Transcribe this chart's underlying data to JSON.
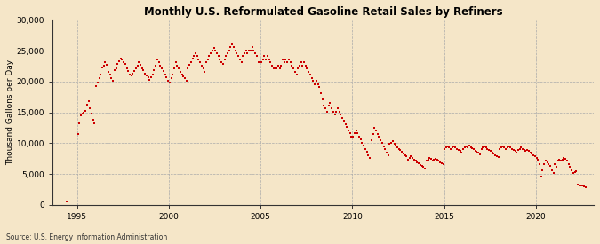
{
  "title": "Monthly U.S. Reformulated Gasoline Retail Sales by Refiners",
  "ylabel": "Thousand Gallons per Day",
  "source": "Source: U.S. Energy Information Administration",
  "background_color": "#f5e6c8",
  "plot_bg_color": "#f5e6c8",
  "marker_color": "#cc0000",
  "ylim": [
    0,
    30000
  ],
  "yticks": [
    0,
    5000,
    10000,
    15000,
    20000,
    25000,
    30000
  ],
  "ytick_labels": [
    "0",
    "5,000",
    "10,000",
    "15,000",
    "20,000",
    "25,000",
    "30,000"
  ],
  "xtick_years": [
    1995,
    2000,
    2005,
    2010,
    2015,
    2020
  ],
  "data": [
    [
      1994,
      6,
      500
    ],
    [
      1995,
      1,
      11500
    ],
    [
      1995,
      2,
      13200
    ],
    [
      1995,
      3,
      14500
    ],
    [
      1995,
      4,
      14800
    ],
    [
      1995,
      5,
      15000
    ],
    [
      1995,
      6,
      15200
    ],
    [
      1995,
      7,
      16200
    ],
    [
      1995,
      8,
      16800
    ],
    [
      1995,
      9,
      15600
    ],
    [
      1995,
      10,
      14800
    ],
    [
      1995,
      11,
      13800
    ],
    [
      1995,
      12,
      13200
    ],
    [
      1996,
      1,
      19200
    ],
    [
      1996,
      2,
      19800
    ],
    [
      1996,
      3,
      20500
    ],
    [
      1996,
      4,
      21200
    ],
    [
      1996,
      5,
      22300
    ],
    [
      1996,
      6,
      22600
    ],
    [
      1996,
      7,
      23100
    ],
    [
      1996,
      8,
      22700
    ],
    [
      1996,
      9,
      21600
    ],
    [
      1996,
      10,
      21100
    ],
    [
      1996,
      11,
      20600
    ],
    [
      1996,
      12,
      20100
    ],
    [
      1997,
      1,
      21800
    ],
    [
      1997,
      2,
      22200
    ],
    [
      1997,
      3,
      22800
    ],
    [
      1997,
      4,
      23300
    ],
    [
      1997,
      5,
      23800
    ],
    [
      1997,
      6,
      23600
    ],
    [
      1997,
      7,
      23200
    ],
    [
      1997,
      8,
      22800
    ],
    [
      1997,
      9,
      22200
    ],
    [
      1997,
      10,
      21700
    ],
    [
      1997,
      11,
      21200
    ],
    [
      1997,
      12,
      21000
    ],
    [
      1998,
      1,
      21300
    ],
    [
      1998,
      2,
      21700
    ],
    [
      1998,
      3,
      22100
    ],
    [
      1998,
      4,
      22600
    ],
    [
      1998,
      5,
      23100
    ],
    [
      1998,
      6,
      22700
    ],
    [
      1998,
      7,
      22200
    ],
    [
      1998,
      8,
      21800
    ],
    [
      1998,
      9,
      21300
    ],
    [
      1998,
      10,
      21000
    ],
    [
      1998,
      11,
      20700
    ],
    [
      1998,
      12,
      20300
    ],
    [
      1999,
      1,
      20700
    ],
    [
      1999,
      2,
      21200
    ],
    [
      1999,
      3,
      21800
    ],
    [
      1999,
      4,
      22600
    ],
    [
      1999,
      5,
      23600
    ],
    [
      1999,
      6,
      23100
    ],
    [
      1999,
      7,
      22600
    ],
    [
      1999,
      8,
      22200
    ],
    [
      1999,
      9,
      21700
    ],
    [
      1999,
      10,
      21200
    ],
    [
      1999,
      11,
      20700
    ],
    [
      1999,
      12,
      20200
    ],
    [
      2000,
      1,
      19800
    ],
    [
      2000,
      2,
      20600
    ],
    [
      2000,
      3,
      21100
    ],
    [
      2000,
      4,
      22100
    ],
    [
      2000,
      5,
      23100
    ],
    [
      2000,
      6,
      22600
    ],
    [
      2000,
      7,
      22100
    ],
    [
      2000,
      8,
      21600
    ],
    [
      2000,
      9,
      21100
    ],
    [
      2000,
      10,
      20800
    ],
    [
      2000,
      11,
      20500
    ],
    [
      2000,
      12,
      20100
    ],
    [
      2001,
      1,
      22200
    ],
    [
      2001,
      2,
      22700
    ],
    [
      2001,
      3,
      23200
    ],
    [
      2001,
      4,
      23700
    ],
    [
      2001,
      5,
      24200
    ],
    [
      2001,
      6,
      24600
    ],
    [
      2001,
      7,
      24100
    ],
    [
      2001,
      8,
      23600
    ],
    [
      2001,
      9,
      23100
    ],
    [
      2001,
      10,
      22600
    ],
    [
      2001,
      11,
      22100
    ],
    [
      2001,
      12,
      21600
    ],
    [
      2002,
      1,
      23100
    ],
    [
      2002,
      2,
      23600
    ],
    [
      2002,
      3,
      24100
    ],
    [
      2002,
      4,
      24600
    ],
    [
      2002,
      5,
      25100
    ],
    [
      2002,
      6,
      25500
    ],
    [
      2002,
      7,
      25100
    ],
    [
      2002,
      8,
      24600
    ],
    [
      2002,
      9,
      24100
    ],
    [
      2002,
      10,
      23600
    ],
    [
      2002,
      11,
      23100
    ],
    [
      2002,
      12,
      22900
    ],
    [
      2003,
      1,
      23600
    ],
    [
      2003,
      2,
      24100
    ],
    [
      2003,
      3,
      24600
    ],
    [
      2003,
      4,
      25100
    ],
    [
      2003,
      5,
      25600
    ],
    [
      2003,
      6,
      26000
    ],
    [
      2003,
      7,
      25600
    ],
    [
      2003,
      8,
      25100
    ],
    [
      2003,
      9,
      24600
    ],
    [
      2003,
      10,
      24100
    ],
    [
      2003,
      11,
      23600
    ],
    [
      2003,
      12,
      23100
    ],
    [
      2004,
      1,
      24100
    ],
    [
      2004,
      2,
      24600
    ],
    [
      2004,
      3,
      25100
    ],
    [
      2004,
      4,
      24600
    ],
    [
      2004,
      5,
      25100
    ],
    [
      2004,
      6,
      25100
    ],
    [
      2004,
      7,
      25600
    ],
    [
      2004,
      8,
      25100
    ],
    [
      2004,
      9,
      24600
    ],
    [
      2004,
      10,
      24100
    ],
    [
      2004,
      11,
      23100
    ],
    [
      2004,
      12,
      23100
    ],
    [
      2005,
      1,
      23100
    ],
    [
      2005,
      2,
      23600
    ],
    [
      2005,
      3,
      24100
    ],
    [
      2005,
      4,
      23600
    ],
    [
      2005,
      5,
      24100
    ],
    [
      2005,
      6,
      23600
    ],
    [
      2005,
      7,
      23100
    ],
    [
      2005,
      8,
      22600
    ],
    [
      2005,
      9,
      22100
    ],
    [
      2005,
      10,
      22100
    ],
    [
      2005,
      11,
      22100
    ],
    [
      2005,
      12,
      22600
    ],
    [
      2006,
      1,
      22100
    ],
    [
      2006,
      2,
      22600
    ],
    [
      2006,
      3,
      23600
    ],
    [
      2006,
      4,
      23100
    ],
    [
      2006,
      5,
      23600
    ],
    [
      2006,
      6,
      23100
    ],
    [
      2006,
      7,
      23600
    ],
    [
      2006,
      8,
      23100
    ],
    [
      2006,
      9,
      22600
    ],
    [
      2006,
      10,
      22100
    ],
    [
      2006,
      11,
      21600
    ],
    [
      2006,
      12,
      21100
    ],
    [
      2007,
      1,
      22100
    ],
    [
      2007,
      2,
      22600
    ],
    [
      2007,
      3,
      23100
    ],
    [
      2007,
      4,
      22600
    ],
    [
      2007,
      5,
      23100
    ],
    [
      2007,
      6,
      22600
    ],
    [
      2007,
      7,
      22100
    ],
    [
      2007,
      8,
      21600
    ],
    [
      2007,
      9,
      21100
    ],
    [
      2007,
      10,
      20600
    ],
    [
      2007,
      11,
      20100
    ],
    [
      2007,
      12,
      19600
    ],
    [
      2008,
      1,
      20100
    ],
    [
      2008,
      2,
      19600
    ],
    [
      2008,
      3,
      19100
    ],
    [
      2008,
      4,
      18100
    ],
    [
      2008,
      5,
      17100
    ],
    [
      2008,
      6,
      16100
    ],
    [
      2008,
      7,
      15600
    ],
    [
      2008,
      8,
      15100
    ],
    [
      2008,
      9,
      16100
    ],
    [
      2008,
      10,
      16600
    ],
    [
      2008,
      11,
      15600
    ],
    [
      2008,
      12,
      15100
    ],
    [
      2009,
      1,
      14600
    ],
    [
      2009,
      2,
      15100
    ],
    [
      2009,
      3,
      15600
    ],
    [
      2009,
      4,
      15100
    ],
    [
      2009,
      5,
      14600
    ],
    [
      2009,
      6,
      14100
    ],
    [
      2009,
      7,
      13600
    ],
    [
      2009,
      8,
      13100
    ],
    [
      2009,
      9,
      12600
    ],
    [
      2009,
      10,
      12100
    ],
    [
      2009,
      11,
      11600
    ],
    [
      2009,
      12,
      11100
    ],
    [
      2010,
      1,
      11100
    ],
    [
      2010,
      2,
      11600
    ],
    [
      2010,
      3,
      12100
    ],
    [
      2010,
      4,
      11600
    ],
    [
      2010,
      5,
      11100
    ],
    [
      2010,
      6,
      10600
    ],
    [
      2010,
      7,
      10100
    ],
    [
      2010,
      8,
      9600
    ],
    [
      2010,
      9,
      9100
    ],
    [
      2010,
      10,
      8600
    ],
    [
      2010,
      11,
      8100
    ],
    [
      2010,
      12,
      7600
    ],
    [
      2011,
      1,
      10500
    ],
    [
      2011,
      2,
      11500
    ],
    [
      2011,
      3,
      12500
    ],
    [
      2011,
      4,
      12000
    ],
    [
      2011,
      5,
      11500
    ],
    [
      2011,
      6,
      11000
    ],
    [
      2011,
      7,
      10500
    ],
    [
      2011,
      8,
      10000
    ],
    [
      2011,
      9,
      9500
    ],
    [
      2011,
      10,
      9000
    ],
    [
      2011,
      11,
      8500
    ],
    [
      2011,
      12,
      8000
    ],
    [
      2012,
      1,
      9900
    ],
    [
      2012,
      2,
      10100
    ],
    [
      2012,
      3,
      10300
    ],
    [
      2012,
      4,
      9900
    ],
    [
      2012,
      5,
      9600
    ],
    [
      2012,
      6,
      9300
    ],
    [
      2012,
      7,
      9100
    ],
    [
      2012,
      8,
      8900
    ],
    [
      2012,
      9,
      8600
    ],
    [
      2012,
      10,
      8300
    ],
    [
      2012,
      11,
      8100
    ],
    [
      2012,
      12,
      7900
    ],
    [
      2013,
      1,
      7300
    ],
    [
      2013,
      2,
      7600
    ],
    [
      2013,
      3,
      7900
    ],
    [
      2013,
      4,
      7600
    ],
    [
      2013,
      5,
      7300
    ],
    [
      2013,
      6,
      7100
    ],
    [
      2013,
      7,
      6900
    ],
    [
      2013,
      8,
      6700
    ],
    [
      2013,
      9,
      6500
    ],
    [
      2013,
      10,
      6300
    ],
    [
      2013,
      11,
      6100
    ],
    [
      2013,
      12,
      5900
    ],
    [
      2014,
      1,
      7100
    ],
    [
      2014,
      2,
      7300
    ],
    [
      2014,
      3,
      7600
    ],
    [
      2014,
      4,
      7400
    ],
    [
      2014,
      5,
      7100
    ],
    [
      2014,
      6,
      7300
    ],
    [
      2014,
      7,
      7500
    ],
    [
      2014,
      8,
      7300
    ],
    [
      2014,
      9,
      7100
    ],
    [
      2014,
      10,
      6900
    ],
    [
      2014,
      11,
      6700
    ],
    [
      2014,
      12,
      6600
    ],
    [
      2015,
      1,
      9100
    ],
    [
      2015,
      2,
      9300
    ],
    [
      2015,
      3,
      9500
    ],
    [
      2015,
      4,
      9300
    ],
    [
      2015,
      5,
      9100
    ],
    [
      2015,
      6,
      9300
    ],
    [
      2015,
      7,
      9500
    ],
    [
      2015,
      8,
      9300
    ],
    [
      2015,
      9,
      9100
    ],
    [
      2015,
      10,
      8900
    ],
    [
      2015,
      11,
      8700
    ],
    [
      2015,
      12,
      8500
    ],
    [
      2016,
      1,
      9100
    ],
    [
      2016,
      2,
      9300
    ],
    [
      2016,
      3,
      9500
    ],
    [
      2016,
      4,
      9300
    ],
    [
      2016,
      5,
      9600
    ],
    [
      2016,
      6,
      9400
    ],
    [
      2016,
      7,
      9200
    ],
    [
      2016,
      8,
      9000
    ],
    [
      2016,
      9,
      8800
    ],
    [
      2016,
      10,
      8600
    ],
    [
      2016,
      11,
      8400
    ],
    [
      2016,
      12,
      8200
    ],
    [
      2017,
      1,
      9100
    ],
    [
      2017,
      2,
      9300
    ],
    [
      2017,
      3,
      9500
    ],
    [
      2017,
      4,
      9300
    ],
    [
      2017,
      5,
      9100
    ],
    [
      2017,
      6,
      8900
    ],
    [
      2017,
      7,
      8700
    ],
    [
      2017,
      8,
      8500
    ],
    [
      2017,
      9,
      8300
    ],
    [
      2017,
      10,
      8100
    ],
    [
      2017,
      11,
      7900
    ],
    [
      2017,
      12,
      7700
    ],
    [
      2018,
      1,
      9100
    ],
    [
      2018,
      2,
      9300
    ],
    [
      2018,
      3,
      9500
    ],
    [
      2018,
      4,
      9300
    ],
    [
      2018,
      5,
      9100
    ],
    [
      2018,
      6,
      9300
    ],
    [
      2018,
      7,
      9500
    ],
    [
      2018,
      8,
      9300
    ],
    [
      2018,
      9,
      9100
    ],
    [
      2018,
      10,
      8900
    ],
    [
      2018,
      11,
      8700
    ],
    [
      2018,
      12,
      8500
    ],
    [
      2019,
      1,
      8900
    ],
    [
      2019,
      2,
      9100
    ],
    [
      2019,
      3,
      9300
    ],
    [
      2019,
      4,
      9100
    ],
    [
      2019,
      5,
      8900
    ],
    [
      2019,
      6,
      8700
    ],
    [
      2019,
      7,
      8900
    ],
    [
      2019,
      8,
      8700
    ],
    [
      2019,
      9,
      8500
    ],
    [
      2019,
      10,
      8300
    ],
    [
      2019,
      11,
      8100
    ],
    [
      2019,
      12,
      7900
    ],
    [
      2020,
      1,
      7600
    ],
    [
      2020,
      2,
      7300
    ],
    [
      2020,
      3,
      6600
    ],
    [
      2020,
      4,
      4600
    ],
    [
      2020,
      5,
      5600
    ],
    [
      2020,
      6,
      6600
    ],
    [
      2020,
      7,
      7100
    ],
    [
      2020,
      8,
      6900
    ],
    [
      2020,
      9,
      6600
    ],
    [
      2020,
      10,
      6300
    ],
    [
      2020,
      11,
      5600
    ],
    [
      2020,
      12,
      5100
    ],
    [
      2021,
      1,
      6600
    ],
    [
      2021,
      2,
      6100
    ],
    [
      2021,
      3,
      7100
    ],
    [
      2021,
      4,
      7300
    ],
    [
      2021,
      5,
      7100
    ],
    [
      2021,
      6,
      7300
    ],
    [
      2021,
      7,
      7600
    ],
    [
      2021,
      8,
      7400
    ],
    [
      2021,
      9,
      7100
    ],
    [
      2021,
      10,
      6600
    ],
    [
      2021,
      11,
      6100
    ],
    [
      2021,
      12,
      5600
    ],
    [
      2022,
      1,
      5100
    ],
    [
      2022,
      2,
      5300
    ],
    [
      2022,
      3,
      5500
    ],
    [
      2022,
      4,
      3300
    ],
    [
      2022,
      5,
      3100
    ],
    [
      2022,
      6,
      3200
    ],
    [
      2022,
      7,
      3100
    ],
    [
      2022,
      8,
      3000
    ],
    [
      2022,
      9,
      2800
    ]
  ]
}
